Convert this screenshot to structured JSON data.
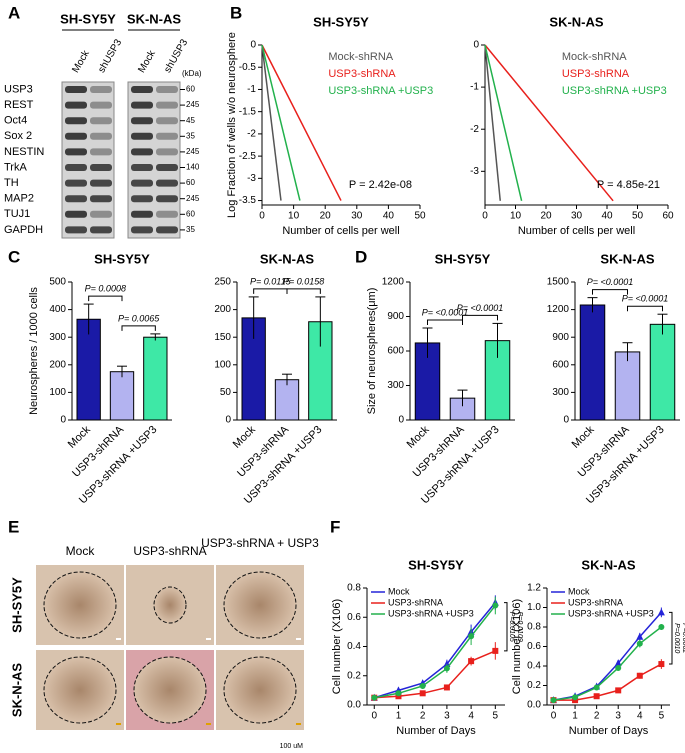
{
  "panel_labels": [
    "A",
    "B",
    "C",
    "D",
    "E",
    "F"
  ],
  "blot": {
    "cell_lines": [
      "SH-SY5Y",
      "SK-N-AS"
    ],
    "lanes": [
      "Mock",
      "shUSP3"
    ],
    "kda_label": "(kDa)",
    "rows": [
      {
        "protein": "USP3",
        "kda": 60
      },
      {
        "protein": "REST",
        "kda": 245
      },
      {
        "protein": "Oct4",
        "kda": 45
      },
      {
        "protein": "Sox 2",
        "kda": 35
      },
      {
        "protein": "NESTIN",
        "kda": 245
      },
      {
        "protein": "TrkA",
        "kda": 140
      },
      {
        "protein": "TH",
        "kda": 60
      },
      {
        "protein": "MAP2",
        "kda": 245
      },
      {
        "protein": "TUJ1",
        "kda": 60
      },
      {
        "protein": "GAPDH",
        "kda": 35
      }
    ]
  },
  "images": {
    "columns": [
      "Mock",
      "USP3-shRNA",
      "USP3-shRNA + USP3"
    ],
    "rows": [
      "SH-SY5Y",
      "SK-N-AS"
    ],
    "scale": "100 uM"
  },
  "chart_data": [
    {
      "type": "line",
      "title": "SH-SY5Y",
      "xlabel": "Number of cells per well",
      "ylabel": "Log Fraction of wells w/o neurosphere",
      "xlim": [
        0,
        50
      ],
      "xticks": [
        0,
        10,
        20,
        30,
        40,
        50
      ],
      "ylim": [
        -3.6,
        0
      ],
      "yticks": [
        0,
        -0.5,
        -1,
        -1.5,
        -2,
        -2.5,
        -3,
        -3.5
      ],
      "annotation": "P = 2.42e-08",
      "series": [
        {
          "name": "Mock-shRNA",
          "color": "#555555",
          "x": [
            0,
            6
          ],
          "values": [
            0,
            -3.5
          ]
        },
        {
          "name": "USP3-shRNA",
          "color": "#e8201c",
          "x": [
            0,
            25
          ],
          "values": [
            0,
            -3.5
          ]
        },
        {
          "name": "USP3-shRNA +USP3",
          "color": "#22b14c",
          "x": [
            0,
            12
          ],
          "values": [
            0,
            -3.5
          ]
        }
      ]
    },
    {
      "type": "line",
      "title": "SK-N-AS",
      "xlabel": "Number of cells per well",
      "xlim": [
        0,
        60
      ],
      "xticks": [
        0,
        10,
        20,
        30,
        40,
        50,
        60
      ],
      "ylim": [
        -3.8,
        0
      ],
      "yticks": [
        0,
        -1,
        -2,
        -3
      ],
      "annotation": "P = 4.85e-21",
      "series": [
        {
          "name": "Mock-shRNA",
          "color": "#555555",
          "x": [
            0,
            5
          ],
          "values": [
            0,
            -3.7
          ]
        },
        {
          "name": "USP3-shRNA",
          "color": "#e8201c",
          "x": [
            0,
            42
          ],
          "values": [
            0,
            -3.7
          ]
        },
        {
          "name": "USP3-shRNA +USP3",
          "color": "#22b14c",
          "x": [
            0,
            12
          ],
          "values": [
            0,
            -3.7
          ]
        }
      ]
    },
    {
      "type": "bar",
      "title": "SH-SY5Y",
      "ylabel": "Neurospheres / 1000 cells",
      "categories": [
        "Mock",
        "USP3-shRNA",
        "USP3-shRNA +USP3"
      ],
      "colors": [
        "#1a1aa6",
        "#b3b3f0",
        "#3ee8a6"
      ],
      "values": [
        365,
        175,
        300
      ],
      "errors": [
        55,
        20,
        12
      ],
      "ylim": [
        0,
        500
      ],
      "yticks": [
        0,
        100,
        200,
        300,
        400,
        500
      ],
      "annotations": [
        "P= 0.0008",
        "P= 0.0065"
      ]
    },
    {
      "type": "bar",
      "title": "SK-N-AS",
      "categories": [
        "Mock",
        "USP3-shRNA",
        "USP3-shRNA +USP3"
      ],
      "colors": [
        "#1a1aa6",
        "#b3b3f0",
        "#3ee8a6"
      ],
      "values": [
        185,
        73,
        178
      ],
      "errors": [
        38,
        10,
        45
      ],
      "ylim": [
        0,
        250
      ],
      "yticks": [
        0,
        50,
        100,
        150,
        200,
        250
      ],
      "annotations": [
        "P= 0.0115",
        "P= 0.0158"
      ]
    },
    {
      "type": "bar",
      "title": "SH-SY5Y",
      "ylabel": "Size of neurospheres(μm)",
      "categories": [
        "Mock",
        "USP3-shRNA",
        "USP3-shRNA +USP3"
      ],
      "colors": [
        "#1a1aa6",
        "#b3b3f0",
        "#3ee8a6"
      ],
      "values": [
        670,
        190,
        690
      ],
      "errors": [
        130,
        70,
        150
      ],
      "ylim": [
        0,
        1200
      ],
      "yticks": [
        0,
        300,
        600,
        900,
        1200
      ],
      "annotations": [
        "P= <0.0001",
        "P= <0.0001"
      ]
    },
    {
      "type": "bar",
      "title": "SK-N-AS",
      "categories": [
        "Mock",
        "USP3-shRNA",
        "USP3-shRNA +USP3"
      ],
      "colors": [
        "#1a1aa6",
        "#b3b3f0",
        "#3ee8a6"
      ],
      "values": [
        1250,
        740,
        1040
      ],
      "errors": [
        80,
        100,
        110
      ],
      "ylim": [
        0,
        1500
      ],
      "yticks": [
        0,
        300,
        600,
        900,
        1200,
        1500
      ],
      "annotations": [
        "P= <0.0001",
        "P= <0.0001"
      ]
    },
    {
      "type": "line",
      "title": "SH-SY5Y",
      "xlabel": "Number of Days",
      "ylabel": "Cell number (X106)",
      "x": [
        0,
        1,
        2,
        3,
        4,
        5
      ],
      "xlim": [
        -0.3,
        5.4
      ],
      "xticks": [
        0,
        1,
        2,
        3,
        4,
        5
      ],
      "ylim": [
        0,
        0.8
      ],
      "yticks": [
        {
          "value": 0,
          "label": "0.0"
        },
        {
          "value": 0.2,
          "label": "0.2"
        },
        {
          "value": 0.4,
          "label": "0.4"
        },
        {
          "value": 0.6,
          "label": "0.6"
        },
        {
          "value": 0.8,
          "label": "0.8"
        }
      ],
      "annotations": [
        "P=0.0105",
        "P=0.0109"
      ],
      "series": [
        {
          "name": "Mock",
          "color": "#2424d8",
          "marker": "triangle",
          "values": [
            0.05,
            0.1,
            0.15,
            0.28,
            0.5,
            0.7
          ],
          "errors": [
            0.01,
            0.02,
            0.02,
            0.03,
            0.05,
            0.05
          ]
        },
        {
          "name": "USP3-shRNA",
          "color": "#e8201c",
          "marker": "square",
          "values": [
            0.05,
            0.06,
            0.08,
            0.12,
            0.3,
            0.37
          ],
          "errors": [
            0.01,
            0.01,
            0.01,
            0.02,
            0.03,
            0.06
          ]
        },
        {
          "name": "USP3-shRNA +USP3",
          "color": "#22b14c",
          "marker": "circle",
          "values": [
            0.05,
            0.08,
            0.13,
            0.25,
            0.47,
            0.68
          ],
          "errors": [
            0.01,
            0.01,
            0.02,
            0.03,
            0.06,
            0.06
          ]
        }
      ]
    },
    {
      "type": "line",
      "title": "SK-N-AS",
      "xlabel": "Number of Days",
      "ylabel": "Cell number (X106)",
      "x": [
        0,
        1,
        2,
        3,
        4,
        5
      ],
      "xlim": [
        -0.3,
        5.4
      ],
      "xticks": [
        0,
        1,
        2,
        3,
        4,
        5
      ],
      "ylim": [
        0,
        1.2
      ],
      "yticks": [
        {
          "value": 0,
          "label": "0.0"
        },
        {
          "value": 0.2,
          "label": "0.2"
        },
        {
          "value": 0.4,
          "label": "0.4"
        },
        {
          "value": 0.6,
          "label": "0.6"
        },
        {
          "value": 0.8,
          "label": "0.8"
        },
        {
          "value": 1,
          "label": "1.0"
        },
        {
          "value": 1.2,
          "label": "1.2"
        }
      ],
      "annotations": [
        "P=0.0010",
        "P=0.0062"
      ],
      "series": [
        {
          "name": "Mock",
          "color": "#2424d8",
          "marker": "triangle",
          "values": [
            0.05,
            0.09,
            0.19,
            0.43,
            0.7,
            0.95
          ],
          "errors": [
            0.01,
            0.01,
            0.02,
            0.03,
            0.04,
            0.05
          ]
        },
        {
          "name": "USP3-shRNA",
          "color": "#e8201c",
          "marker": "square",
          "values": [
            0.05,
            0.05,
            0.09,
            0.15,
            0.3,
            0.42
          ],
          "errors": [
            0.01,
            0.01,
            0.01,
            0.02,
            0.03,
            0.05
          ]
        },
        {
          "name": "USP3-shRNA +USP3",
          "color": "#22b14c",
          "marker": "circle",
          "values": [
            0.05,
            0.08,
            0.18,
            0.38,
            0.63,
            0.8
          ],
          "errors": [
            0.01,
            0.01,
            0.02,
            0.03,
            0.04,
            0.03
          ]
        }
      ]
    }
  ]
}
